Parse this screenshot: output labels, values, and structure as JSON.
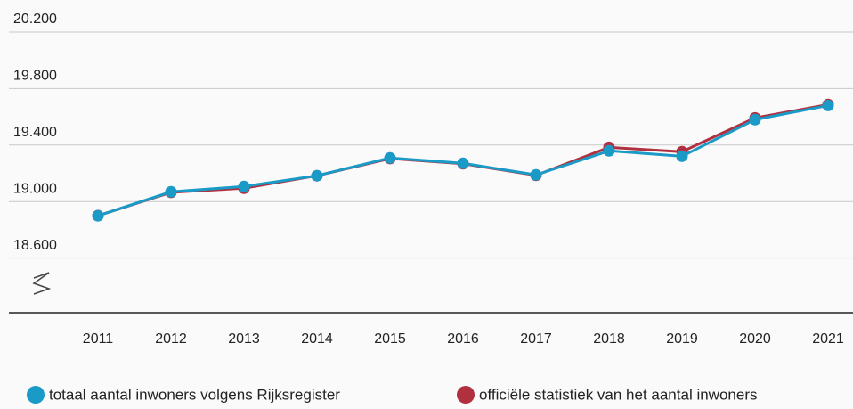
{
  "chart_data": {
    "type": "line",
    "x": [
      "2011",
      "2012",
      "2013",
      "2014",
      "2015",
      "2016",
      "2017",
      "2018",
      "2019",
      "2020",
      "2021"
    ],
    "series": [
      {
        "name": "officiële statistiek van het aantal inwoners",
        "color": "#b03040",
        "values": [
          18900,
          19065,
          19094,
          19183,
          19305,
          19268,
          19186,
          19384,
          19353,
          19592,
          19687
        ]
      },
      {
        "name": "totaal aantal inwoners volgens Rijksregister",
        "color": "#1a9bc7",
        "values": [
          18899,
          19069,
          19107,
          19183,
          19309,
          19271,
          19189,
          19359,
          19321,
          19580,
          19680
        ]
      }
    ],
    "ylim": [
      18200,
      20200
    ],
    "yticks": [
      {
        "value": 18600,
        "label": "18.600"
      },
      {
        "value": 19000,
        "label": "19.000"
      },
      {
        "value": 19400,
        "label": "19.400"
      },
      {
        "value": 19800,
        "label": "19.800"
      },
      {
        "value": 20200,
        "label": "20.200"
      }
    ],
    "grid": true
  }
}
